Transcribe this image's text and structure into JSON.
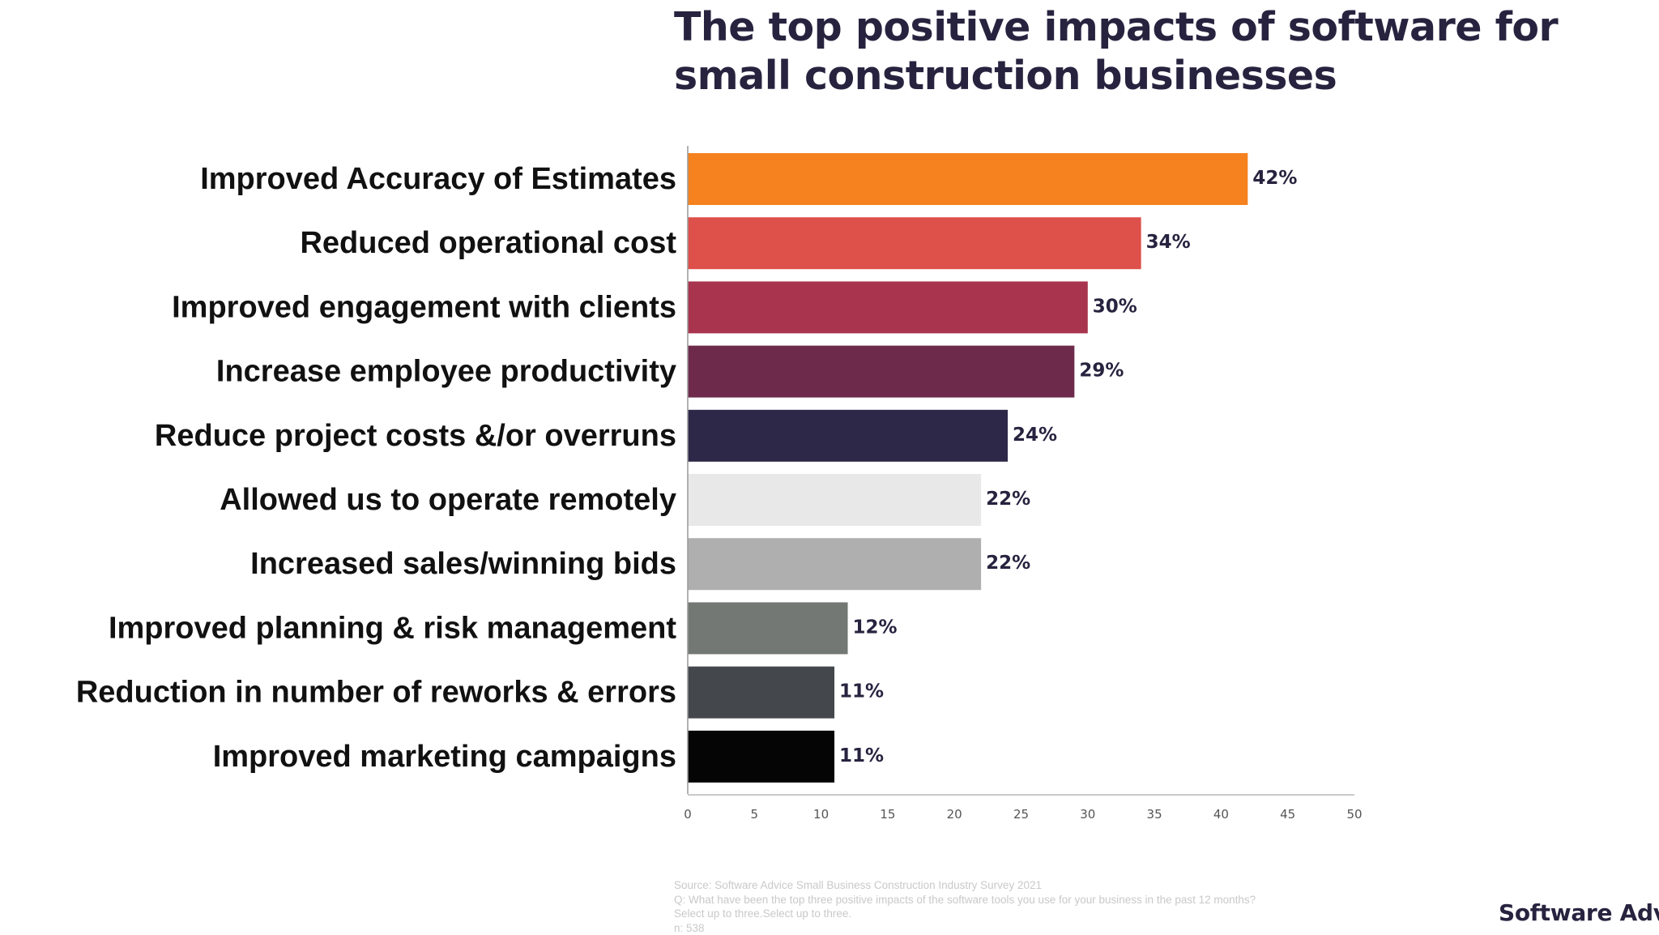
{
  "chart_data": {
    "type": "bar",
    "orientation": "horizontal",
    "title": "The top positive impacts of software for small construction businesses",
    "categories": [
      "Improved Accuracy of Estimates",
      "Reduced operational cost",
      "Improved engagement with clients",
      "Increase employee productivity",
      "Reduce project costs &/or overruns",
      "Allowed us to operate remotely",
      "Increased sales/winning bids",
      "Improved planning & risk management",
      "Reduction in number of reworks & errors",
      "Improved marketing campaigns"
    ],
    "values": [
      42,
      34,
      30,
      29,
      24,
      22,
      22,
      12,
      11,
      11
    ],
    "value_labels": [
      "42%",
      "34%",
      "30%",
      "29%",
      "24%",
      "22%",
      "22%",
      "12%",
      "11%",
      "11%"
    ],
    "colors": [
      "#f5821f",
      "#de504a",
      "#a8344e",
      "#6e2a4a",
      "#2d2848",
      "#e8e8e8",
      "#afafaf",
      "#737874",
      "#44474b",
      "#050505"
    ],
    "xlim": [
      0,
      50
    ],
    "xticks": [
      0,
      5,
      10,
      15,
      20,
      25,
      30,
      35,
      40,
      45,
      50
    ],
    "xlabel": "",
    "ylabel": "",
    "grid": false,
    "legend": "none"
  },
  "footnote": {
    "source": "Source: Software Advice Small Business Construction Industry Survey 2021",
    "question": "Q: What have been the top three positive impacts of the software tools you use for your business in the past 12 months?",
    "instruction": "Select up to three.Select up to three.",
    "sample": "n: 538"
  },
  "brand": {
    "text": "Software Advice"
  }
}
